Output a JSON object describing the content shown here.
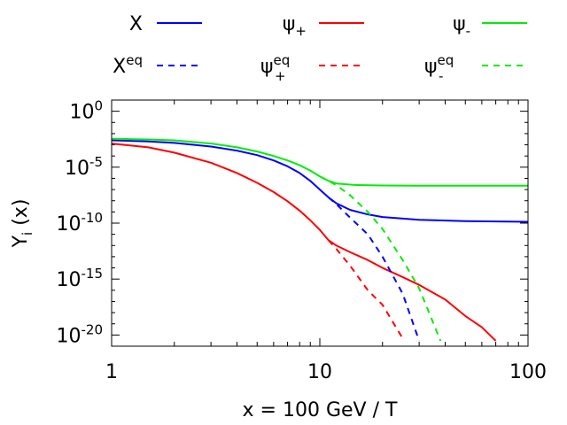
{
  "chart_data": {
    "type": "line",
    "title": "",
    "xlabel": "x = 100 GeV / T",
    "ylabel": {
      "base": "Y",
      "sub": "i",
      "rest": " (x)"
    },
    "xscale": "log",
    "yscale": "log",
    "xlim": [
      1,
      100
    ],
    "ylim": [
      1e-21,
      10.0
    ],
    "x_ticks": [
      {
        "value": 1,
        "label": "1"
      },
      {
        "value": 10,
        "label": "10"
      },
      {
        "value": 100,
        "label": "100"
      }
    ],
    "y_ticks": [
      {
        "value": 1,
        "base": "10",
        "exp": "0"
      },
      {
        "value": 1e-05,
        "base": "10",
        "exp": "-5"
      },
      {
        "value": 1e-10,
        "base": "10",
        "exp": "-10"
      },
      {
        "value": 1e-15,
        "base": "10",
        "exp": "-15"
      },
      {
        "value": 1e-20,
        "base": "10",
        "exp": "-20"
      }
    ],
    "legend_position": "top",
    "series": [
      {
        "id": "X",
        "legend_base": "X",
        "legend_sub": "",
        "legend_sup": "",
        "color": "#0000ff",
        "dash": "solid",
        "x": [
          1,
          1.5,
          2,
          3,
          4,
          5,
          6,
          7,
          8,
          9,
          10,
          11,
          12,
          14,
          17,
          20,
          30,
          50,
          100
        ],
        "y": [
          0.0025,
          0.002,
          0.0015,
          0.0007,
          0.0003,
          0.00012,
          4e-05,
          1.2e-05,
          3e-06,
          6e-07,
          1e-07,
          2e-08,
          6e-09,
          1.5e-09,
          6e-10,
          3.5e-10,
          2e-10,
          1.5e-10,
          1.3e-10
        ]
      },
      {
        "id": "psi_plus",
        "legend_base": "ψ",
        "legend_sub": "+",
        "legend_sup": "",
        "color": "#ff0000",
        "dash": "solid",
        "x": [
          1,
          1.5,
          2,
          3,
          4,
          5,
          6,
          7,
          8,
          9,
          10,
          11,
          12,
          14,
          17,
          20,
          25,
          30,
          40,
          50,
          60,
          70
        ],
        "y": [
          0.0013,
          0.0006,
          0.0002,
          2.5e-05,
          3e-06,
          4e-07,
          6e-08,
          9e-09,
          1.3e-09,
          1.8e-10,
          2.5e-11,
          3e-12,
          1e-12,
          2.5e-13,
          5e-14,
          1e-14,
          1.5e-15,
          3e-16,
          1.5e-17,
          5e-19,
          5e-20,
          3e-21
        ]
      },
      {
        "id": "psi_minus",
        "legend_base": "ψ",
        "legend_sub": "-",
        "legend_sup": "",
        "color": "#00ee00",
        "dash": "solid",
        "x": [
          1,
          1.5,
          2,
          3,
          4,
          5,
          6,
          7,
          8,
          9,
          10,
          11,
          12,
          15,
          20,
          30,
          50,
          100
        ],
        "y": [
          0.0035,
          0.003,
          0.0025,
          0.0013,
          0.0006,
          0.00025,
          0.0001,
          4e-05,
          1.5e-05,
          5e-06,
          1.5e-06,
          6e-07,
          3.5e-07,
          2.5e-07,
          2.3e-07,
          2.2e-07,
          2.2e-07,
          2.2e-07
        ]
      },
      {
        "id": "X_eq",
        "legend_base": "X",
        "legend_sub": "",
        "legend_sup": "eq",
        "color": "#0000ff",
        "dash": "dashed",
        "x": [
          11,
          12,
          14,
          17,
          20,
          25,
          30
        ],
        "y": [
          2e-08,
          5e-09,
          3e-10,
          1e-11,
          1e-13,
          5e-17,
          3e-21
        ]
      },
      {
        "id": "psi_plus_eq",
        "legend_base": "ψ",
        "legend_sub": "+",
        "legend_sup": "eq",
        "color": "#ff0000",
        "dash": "dashed",
        "x": [
          11,
          12,
          14,
          17,
          20,
          25
        ],
        "y": [
          3e-12,
          5e-13,
          1.5e-14,
          1e-16,
          5e-18,
          5e-21
        ]
      },
      {
        "id": "psi_minus_eq",
        "legend_base": "ψ",
        "legend_sub": "-",
        "legend_sup": "eq",
        "color": "#00ee00",
        "dash": "dashed",
        "x": [
          10,
          12,
          14,
          17,
          20,
          25,
          30,
          38
        ],
        "y": [
          1.5e-06,
          2.5e-07,
          3e-08,
          1e-09,
          3e-11,
          5e-14,
          1.5e-16,
          3e-21
        ]
      }
    ]
  }
}
